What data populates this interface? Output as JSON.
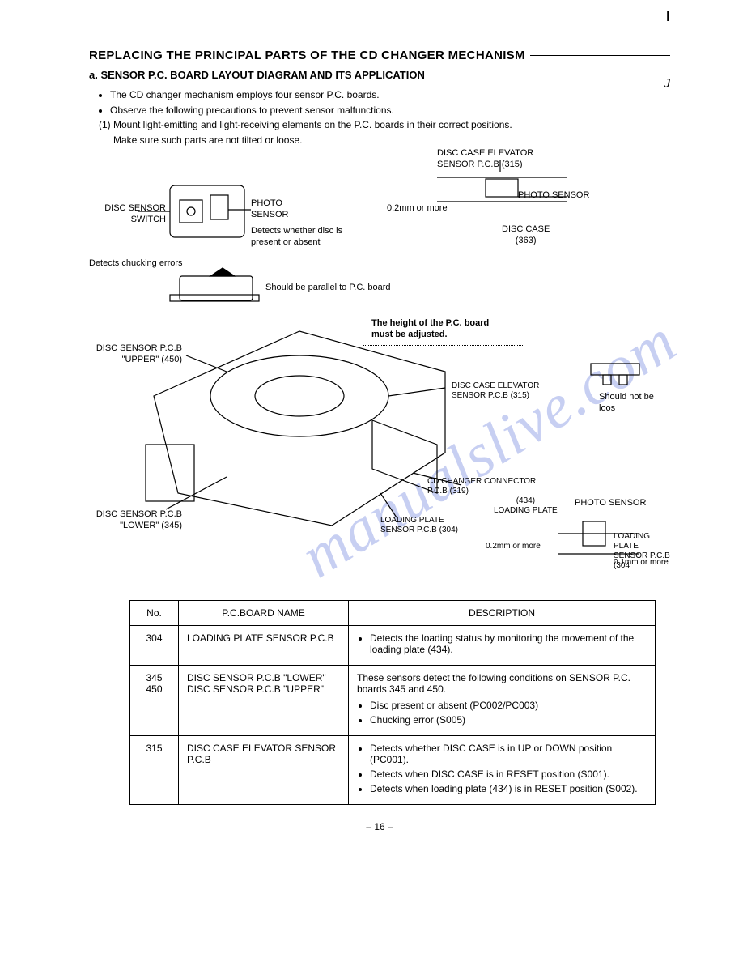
{
  "marks": {
    "top": "I",
    "corner": "J"
  },
  "headings": {
    "h1": "REPLACING THE PRINCIPAL PARTS OF THE CD CHANGER MECHANISM",
    "h2": "a.   SENSOR P.C. BOARD LAYOUT DIAGRAM AND ITS APPLICATION"
  },
  "intro": {
    "b1": "The CD changer mechanism employs four sensor P.C. boards.",
    "b2": "Observe the following precautions to prevent sensor malfunctions.",
    "n1": "(1)  Mount light-emitting and light-receiving elements on the P.C. boards in their correct positions.",
    "n1c": "Make sure such parts are not tilted or loose."
  },
  "diagram": {
    "disc_sensor_switch": "DISC SENSOR\nSWITCH",
    "photo_sensor": "PHOTO\nSENSOR",
    "detects_present": "Detects whether disc is\npresent or absent",
    "detects_chucking": "Detects chucking errors",
    "parallel": "Should be parallel to P.C. board",
    "elevator_top": "DISC CASE ELEVATOR\nSENSOR P.C.B (315)",
    "photo_sensor_r": "PHOTO SENSOR",
    "gap1": "0.2mm or more",
    "disc_case": "DISC CASE\n(363)",
    "height_note": "The height of the P.C. board\nmust  be adjusted.",
    "upper": "DISC SENSOR P.C.B\n\"UPPER\" (450)",
    "lower": "DISC SENSOR P.C.B\n\"LOWER\" (345)",
    "elevator_mid": "DISC CASE ELEVATOR\nSENSOR P.C.B (315)",
    "connector": "CD CHANGER CONNECTOR\nP.C.B (319)",
    "loading_plate_num": "(434)\nLOADING PLATE",
    "loading_plate_sensor": "LOADING PLATE\nSENSOR P.C.B (304)",
    "photo_sensor_br": "PHOTO SENSOR",
    "should_not_loose": "Should not be loos",
    "gap2": "0.2mm or more",
    "gap3": "0.1mm or more",
    "loading_plate_sensor_r": "LOADING PLATE\nSENSOR P.C.B (304"
  },
  "table": {
    "headers": {
      "no": "No.",
      "name": "P.C.BOARD NAME",
      "desc": "DESCRIPTION"
    },
    "rows": [
      {
        "no": "304",
        "name": "LOADING PLATE SENSOR P.C.B",
        "desc_items": [
          "Detects the loading status by monitoring the movement of the loading plate (434)."
        ]
      },
      {
        "no": "345\n450",
        "name": "DISC SENSOR P.C.B \"LOWER\"\nDISC SENSOR P.C.B \"UPPER\"",
        "desc_pre": "These sensors detect the following conditions on SENSOR P.C. boards 345 and 450.",
        "desc_items": [
          "Disc present or absent (PC002/PC003)",
          "Chucking error (S005)"
        ]
      },
      {
        "no": "315",
        "name": "DISC CASE ELEVATOR SENSOR P.C.B",
        "desc_items": [
          "Detects whether DISC CASE is in UP or DOWN position (PC001).",
          "Detects when DISC CASE is in RESET position (S001).",
          "Detects when loading plate (434) is in RESET position (S002)."
        ]
      }
    ]
  },
  "pagenum": "– 16 –",
  "watermark": "manualslive.com",
  "colors": {
    "text": "#000000",
    "bg": "#ffffff",
    "watermark": "#9ba8e8",
    "border": "#000000"
  }
}
